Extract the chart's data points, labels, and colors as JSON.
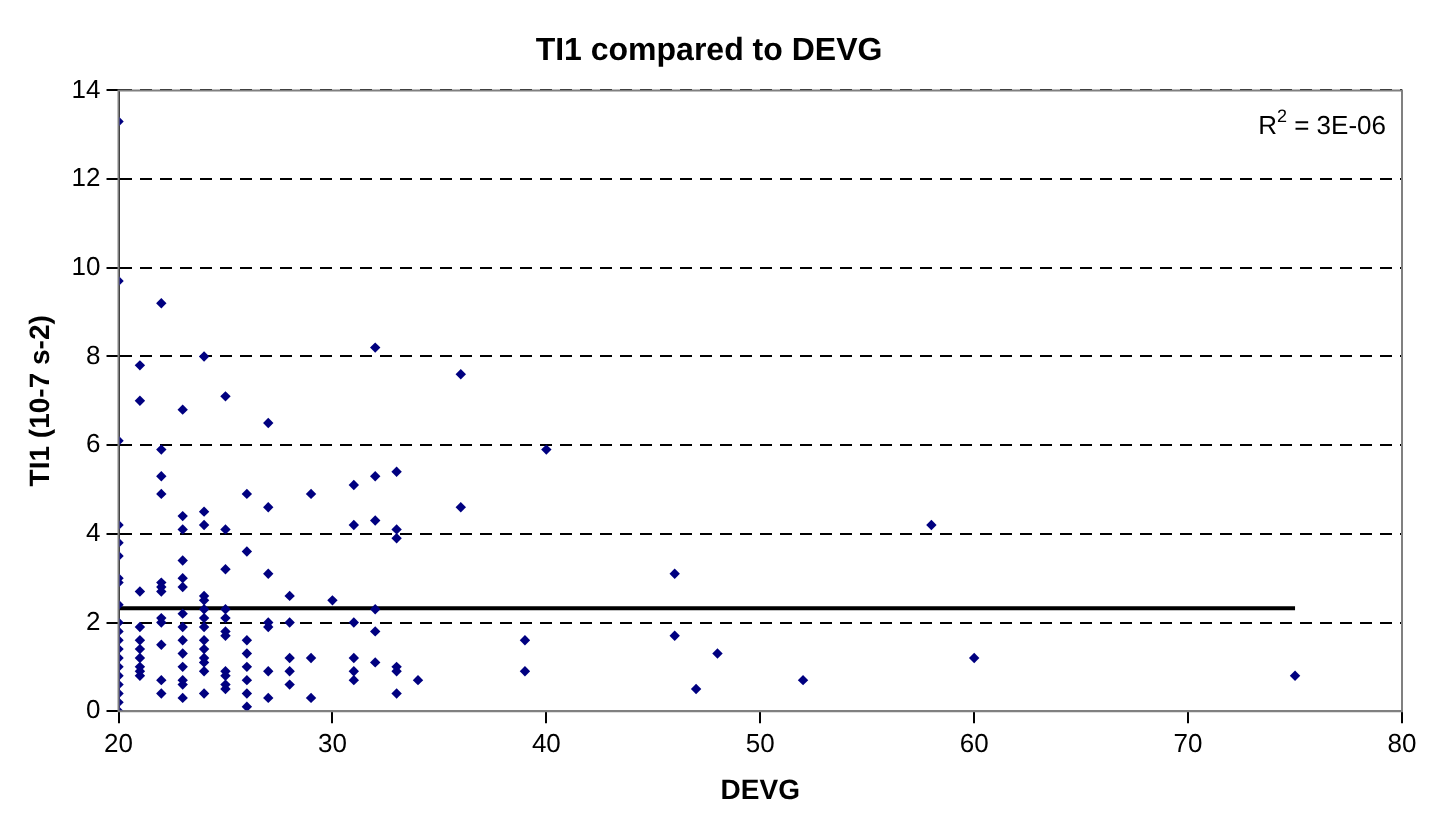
{
  "chart_data": {
    "type": "scatter",
    "title": "TI1 compared to DEVG",
    "xlabel": "DEVG",
    "ylabel": "TI1 (10-7 s-2)",
    "xlim": [
      20,
      80
    ],
    "xticks": [
      20,
      30,
      40,
      50,
      60,
      70,
      80
    ],
    "ylim": [
      0,
      14
    ],
    "yticks": [
      0,
      2,
      4,
      6,
      8,
      10,
      12,
      14
    ],
    "grid": "y",
    "legend": false,
    "annotations": [
      "R$^{2}$ = 3E-06"
    ],
    "series": [
      {
        "marker": "diamond",
        "color": "#000080",
        "x": [
          20,
          20,
          20,
          20,
          20,
          20,
          20,
          20,
          20,
          20,
          20,
          20,
          20,
          20,
          20,
          20,
          20,
          20,
          20,
          20,
          21,
          21,
          21,
          21,
          21,
          21,
          21,
          21,
          21,
          21,
          22,
          22,
          22,
          22,
          22,
          22,
          22,
          22,
          22,
          22,
          22,
          22,
          23,
          23,
          23,
          23,
          23,
          23,
          23,
          23,
          23,
          23,
          23,
          23,
          23,
          23,
          24,
          24,
          24,
          24,
          24,
          24,
          24,
          24,
          24,
          24,
          24,
          24,
          24,
          24,
          25,
          25,
          25,
          25,
          25,
          25,
          25,
          25,
          25,
          25,
          25,
          26,
          26,
          26,
          26,
          26,
          26,
          26,
          26,
          27,
          27,
          27,
          27,
          27,
          27,
          27,
          28,
          28,
          28,
          28,
          28,
          29,
          29,
          29,
          30,
          31,
          31,
          31,
          31,
          31,
          31,
          32,
          32,
          32,
          32,
          32,
          32,
          33,
          33,
          33,
          33,
          33,
          33,
          34,
          36,
          36,
          39,
          39,
          40,
          46,
          46,
          47,
          48,
          52,
          58,
          60,
          75
        ],
        "values": [
          13.3,
          9.7,
          6.1,
          4.2,
          3.8,
          3.5,
          3.0,
          2.9,
          2.4,
          2.0,
          1.8,
          1.6,
          1.4,
          1.2,
          1.0,
          0.8,
          0.6,
          0.4,
          0.2,
          0.0,
          7.8,
          7.0,
          2.7,
          1.9,
          1.6,
          1.4,
          1.2,
          1.0,
          0.9,
          0.8,
          9.2,
          5.9,
          5.3,
          4.9,
          2.9,
          2.8,
          2.7,
          2.1,
          2.0,
          1.5,
          0.7,
          0.4,
          6.8,
          4.4,
          4.1,
          3.4,
          3.0,
          2.8,
          2.2,
          1.9,
          1.6,
          1.3,
          1.0,
          0.7,
          0.6,
          0.3,
          8.0,
          4.5,
          4.2,
          2.6,
          2.5,
          2.3,
          2.1,
          1.9,
          1.6,
          1.4,
          1.2,
          1.1,
          0.9,
          0.4,
          7.1,
          4.1,
          3.2,
          2.3,
          2.1,
          1.8,
          1.7,
          0.9,
          0.8,
          0.6,
          0.5,
          4.9,
          3.6,
          1.6,
          1.3,
          1.0,
          0.7,
          0.4,
          0.1,
          6.5,
          4.6,
          3.1,
          2.0,
          1.9,
          0.9,
          0.3,
          2.6,
          2.0,
          1.2,
          0.9,
          0.6,
          4.9,
          1.2,
          0.3,
          2.5,
          5.1,
          4.2,
          2.0,
          1.2,
          0.9,
          0.7,
          8.2,
          5.3,
          4.3,
          2.3,
          1.8,
          1.1,
          5.4,
          4.1,
          3.9,
          1.0,
          0.9,
          0.4,
          0.7,
          7.6,
          4.6,
          1.6,
          0.9,
          5.9,
          3.1,
          1.7,
          0.5,
          1.3,
          0.7,
          4.2,
          1.2,
          0.8
        ]
      },
      {
        "type": "line",
        "marker": "none",
        "color": "#000000",
        "x": [
          20,
          75
        ],
        "values": [
          2.32,
          2.32
        ]
      }
    ]
  }
}
